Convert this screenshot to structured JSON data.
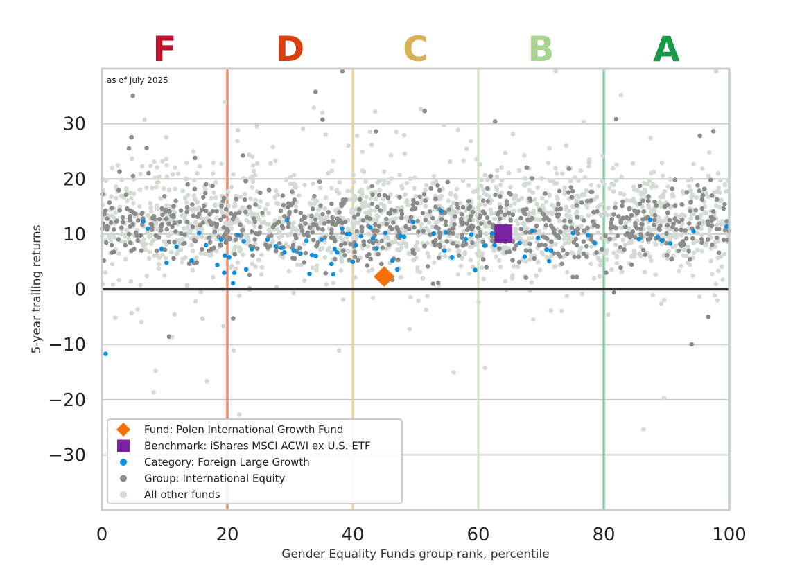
{
  "chart_data": {
    "type": "scatter",
    "note": "as of July 2025",
    "xlabel": "Gender Equality Funds group rank, percentile",
    "ylabel": "5-year trailing returns",
    "xlim": [
      0,
      100
    ],
    "ylim": [
      -40,
      40
    ],
    "xticks": [
      0,
      20,
      40,
      60,
      80,
      100
    ],
    "yticks": [
      -30,
      -20,
      -10,
      0,
      10,
      20,
      30
    ],
    "xtick_labels": [
      "0",
      "20",
      "40",
      "60",
      "80",
      "100"
    ],
    "ytick_labels": [
      "−30",
      "−20",
      "−10",
      "0",
      "10",
      "20",
      "30"
    ],
    "grid": "horizontal",
    "zero_line": 0,
    "grade_bands": [
      {
        "label": "F",
        "from": 0,
        "to": 20,
        "color": "#c0102a",
        "line_color": "#e8805e"
      },
      {
        "label": "D",
        "from": 20,
        "to": 40,
        "color": "#d8400e",
        "line_color": "#ecd09a"
      },
      {
        "label": "C",
        "from": 40,
        "to": 60,
        "color": "#d8b055",
        "line_color": "#cfe6c0"
      },
      {
        "label": "B",
        "from": 60,
        "to": 80,
        "color": "#a8d490",
        "line_color": "#7acb95"
      },
      {
        "label": "A",
        "from": 80,
        "to": 100,
        "color": "#1a9a48",
        "line_color": "#8fd4a6"
      }
    ],
    "legend": {
      "placement": "bottom-left",
      "entries": [
        {
          "label": "Fund: Polen International Growth Fund",
          "marker": "diamond",
          "color": "#f5700a"
        },
        {
          "label": "Benchmark: iShares MSCI ACWI ex U.S. ETF",
          "marker": "square",
          "color": "#7b22a3"
        },
        {
          "label": "Category: Foreign Large Growth",
          "marker": "circle",
          "color": "#0a90e0"
        },
        {
          "label": "Group: International Equity",
          "marker": "circle",
          "color": "#8c8c8c"
        },
        {
          "label": "All other funds",
          "marker": "circle",
          "color": "#d4dad4"
        }
      ]
    },
    "series": [
      {
        "name": "Fund: Polen International Growth Fund",
        "marker": "diamond",
        "color": "#f5700a",
        "points": [
          [
            45,
            2.3
          ]
        ]
      },
      {
        "name": "Benchmark: iShares MSCI ACWI ex U.S. ETF",
        "marker": "square",
        "color": "#7b22a3",
        "points": [
          [
            64,
            10.1
          ]
        ]
      },
      {
        "name": "Category: Foreign Large Growth",
        "marker": "circle",
        "color": "#0a90e0",
        "points": [
          [
            0.6,
            -11.7
          ],
          [
            6.6,
            12.3
          ],
          [
            7.3,
            11.0
          ],
          [
            9.5,
            7.3
          ],
          [
            10.3,
            4.8
          ],
          [
            11.9,
            7.7
          ],
          [
            14.3,
            5.2
          ],
          [
            15.5,
            10.2
          ],
          [
            16.6,
            8.0
          ],
          [
            18.4,
            4.4
          ],
          [
            19.0,
            9.0
          ],
          [
            19.5,
            3.0
          ],
          [
            19.6,
            6.1
          ],
          [
            20.3,
            5.8
          ],
          [
            20.9,
            1.1
          ],
          [
            21.1,
            3.0
          ],
          [
            21.7,
            9.8
          ],
          [
            22.6,
            8.7
          ],
          [
            23.0,
            3.6
          ],
          [
            23.9,
            7.3
          ],
          [
            26.4,
            9.0
          ],
          [
            27.7,
            7.8
          ],
          [
            28.6,
            7.5
          ],
          [
            29.1,
            6.7
          ],
          [
            29.5,
            12.5
          ],
          [
            30.6,
            7.0
          ],
          [
            31.6,
            6.5
          ],
          [
            32.6,
            8.8
          ],
          [
            33.1,
            2.8
          ],
          [
            33.5,
            6.2
          ],
          [
            34.1,
            6.0
          ],
          [
            35.0,
            9.0
          ],
          [
            36.6,
            4.6
          ],
          [
            36.9,
            2.7
          ],
          [
            37.1,
            7.3
          ],
          [
            37.5,
            6.7
          ],
          [
            38.3,
            11.0
          ],
          [
            39.1,
            10.0
          ],
          [
            39.5,
            10.0
          ],
          [
            40.0,
            5.0
          ],
          [
            40.5,
            8.0
          ],
          [
            41.3,
            9.6
          ],
          [
            42.8,
            11.2
          ],
          [
            43.2,
            9.2
          ],
          [
            43.8,
            7.4
          ],
          [
            45.2,
            10.2
          ],
          [
            46.3,
            5.2
          ],
          [
            47.1,
            3.6
          ],
          [
            47.6,
            9.7
          ],
          [
            48.2,
            9.5
          ],
          [
            49.6,
            12.2
          ],
          [
            52.9,
            10.1
          ],
          [
            54.1,
            14.2
          ],
          [
            54.8,
            10.3
          ],
          [
            54.6,
            7.0
          ],
          [
            55.8,
            5.8
          ],
          [
            58.0,
            9.1
          ],
          [
            58.9,
            9.9
          ],
          [
            59.5,
            3.5
          ],
          [
            61.0,
            7.9
          ],
          [
            62.2,
            10.1
          ],
          [
            62.6,
            8.0
          ],
          [
            63.7,
            10.6
          ],
          [
            66.6,
            8.4
          ],
          [
            67.4,
            5.9
          ],
          [
            68.6,
            10.6
          ],
          [
            69.5,
            9.3
          ],
          [
            70.9,
            7.2
          ],
          [
            71.3,
            5.1
          ],
          [
            71.6,
            7.0
          ],
          [
            75.1,
            10.2
          ],
          [
            77.5,
            9.8
          ],
          [
            78.6,
            8.4
          ],
          [
            85.6,
            9.1
          ],
          [
            87.4,
            12.6
          ],
          [
            88.6,
            9.5
          ],
          [
            89.3,
            8.8
          ],
          [
            90.6,
            8.3
          ],
          [
            94.3,
            10.5
          ],
          [
            99.6,
            11.4
          ]
        ]
      },
      {
        "name": "Group: International Equity",
        "marker": "circle",
        "color": "#8c8c8c",
        "generated_distribution": {
          "count": 800,
          "center": 11.5,
          "spread": 3.2,
          "seed": 7
        }
      },
      {
        "name": "All other funds",
        "marker": "circle",
        "color": "#d4dad4",
        "generated_distribution": {
          "count": 1700,
          "center": 12.5,
          "spread": 5.0,
          "seed": 21
        }
      }
    ]
  }
}
